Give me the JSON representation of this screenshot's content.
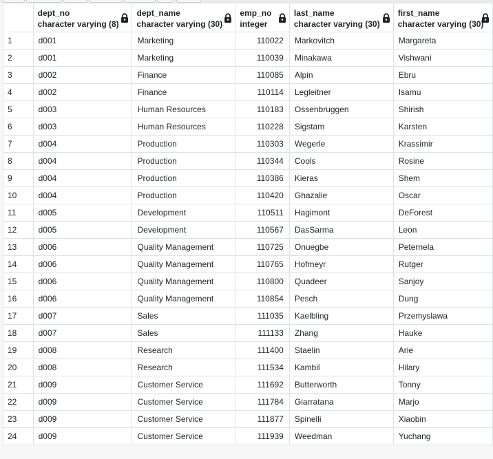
{
  "columns": [
    {
      "name": "dept_no",
      "type": "character varying (8)",
      "locked": true,
      "align": "left"
    },
    {
      "name": "dept_name",
      "type": "character varying (30)",
      "locked": true,
      "align": "left"
    },
    {
      "name": "emp_no",
      "type": "integer",
      "locked": true,
      "align": "right"
    },
    {
      "name": "last_name",
      "type": "character varying (30)",
      "locked": true,
      "align": "left"
    },
    {
      "name": "first_name",
      "type": "character varying (30)",
      "locked": true,
      "align": "left"
    }
  ],
  "rows": [
    {
      "num": "1",
      "cells": [
        "d001",
        "Marketing",
        "110022",
        "Markovitch",
        "Margareta"
      ]
    },
    {
      "num": "2",
      "cells": [
        "d001",
        "Marketing",
        "110039",
        "Minakawa",
        "Vishwani"
      ]
    },
    {
      "num": "3",
      "cells": [
        "d002",
        "Finance",
        "110085",
        "Alpin",
        "Ebru"
      ]
    },
    {
      "num": "4",
      "cells": [
        "d002",
        "Finance",
        "110114",
        "Legleitner",
        "Isamu"
      ]
    },
    {
      "num": "5",
      "cells": [
        "d003",
        "Human Resources",
        "110183",
        "Ossenbruggen",
        "Shirish"
      ]
    },
    {
      "num": "6",
      "cells": [
        "d003",
        "Human Resources",
        "110228",
        "Sigstam",
        "Karsten"
      ]
    },
    {
      "num": "7",
      "cells": [
        "d004",
        "Production",
        "110303",
        "Wegerle",
        "Krassimir"
      ]
    },
    {
      "num": "8",
      "cells": [
        "d004",
        "Production",
        "110344",
        "Cools",
        "Rosine"
      ]
    },
    {
      "num": "9",
      "cells": [
        "d004",
        "Production",
        "110386",
        "Kieras",
        "Shem"
      ]
    },
    {
      "num": "10",
      "cells": [
        "d004",
        "Production",
        "110420",
        "Ghazalie",
        "Oscar"
      ]
    },
    {
      "num": "11",
      "cells": [
        "d005",
        "Development",
        "110511",
        "Hagimont",
        "DeForest"
      ]
    },
    {
      "num": "12",
      "cells": [
        "d005",
        "Development",
        "110567",
        "DasSarma",
        "Leon"
      ]
    },
    {
      "num": "13",
      "cells": [
        "d006",
        "Quality Management",
        "110725",
        "Onuegbe",
        "Peternela"
      ]
    },
    {
      "num": "14",
      "cells": [
        "d006",
        "Quality Management",
        "110765",
        "Hofmeyr",
        "Rutger"
      ]
    },
    {
      "num": "15",
      "cells": [
        "d006",
        "Quality Management",
        "110800",
        "Quadeer",
        "Sanjoy"
      ]
    },
    {
      "num": "16",
      "cells": [
        "d006",
        "Quality Management",
        "110854",
        "Pesch",
        "Dung"
      ]
    },
    {
      "num": "17",
      "cells": [
        "d007",
        "Sales",
        "111035",
        "Kaelbling",
        "Przemyslawa"
      ]
    },
    {
      "num": "18",
      "cells": [
        "d007",
        "Sales",
        "111133",
        "Zhang",
        "Hauke"
      ]
    },
    {
      "num": "19",
      "cells": [
        "d008",
        "Research",
        "111400",
        "Staelin",
        "Arie"
      ]
    },
    {
      "num": "20",
      "cells": [
        "d008",
        "Research",
        "111534",
        "Kambil",
        "Hilary"
      ]
    },
    {
      "num": "21",
      "cells": [
        "d009",
        "Customer Service",
        "111692",
        "Butterworth",
        "Tonny"
      ]
    },
    {
      "num": "22",
      "cells": [
        "d009",
        "Customer Service",
        "111784",
        "Giarratana",
        "Marjo"
      ]
    },
    {
      "num": "23",
      "cells": [
        "d009",
        "Customer Service",
        "111877",
        "Spinelli",
        "Xiaobin"
      ]
    },
    {
      "num": "24",
      "cells": [
        "d009",
        "Customer Service",
        "111939",
        "Weedman",
        "Yuchang"
      ]
    }
  ],
  "icons": {
    "column_lock": "lock-icon"
  },
  "colors": {
    "grid_line": "#dee2e6",
    "text": "#222529",
    "background": "#f7f7f7"
  }
}
